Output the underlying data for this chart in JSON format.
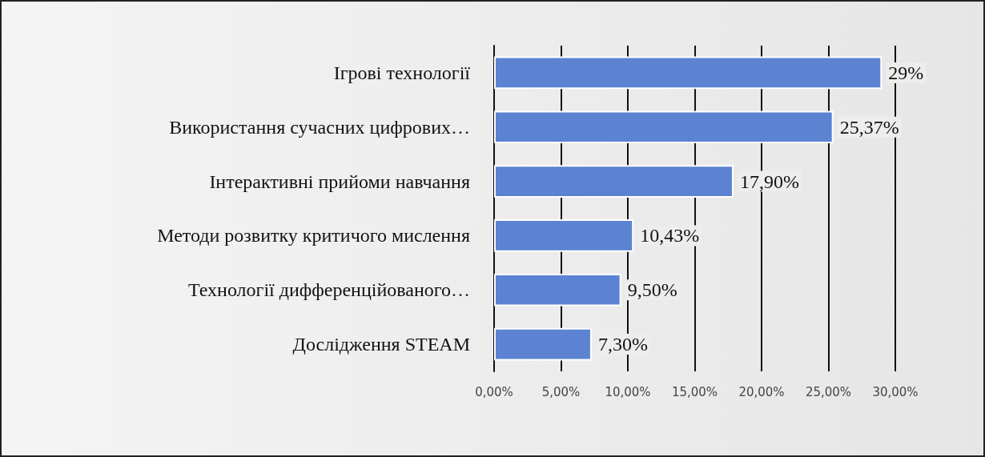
{
  "chart_data": {
    "type": "bar",
    "orientation": "horizontal",
    "categories": [
      "Ігрові технології",
      "Використання сучасних цифрових…",
      "Інтерактивні прийоми навчання",
      "Методи розвитку критичого мислення",
      "Технології дифференційованого…",
      "Дослідження STEAM"
    ],
    "values": [
      29,
      25.37,
      17.9,
      10.43,
      9.5,
      7.3
    ],
    "value_labels": [
      "29%",
      "25,37%",
      "17,90%",
      "10,43%",
      "9,50%",
      "7,30%"
    ],
    "color": "#5b83d2",
    "xlim": [
      0,
      30
    ],
    "xticks": [
      {
        "value": 0,
        "label": "0,00%"
      },
      {
        "value": 5,
        "label": "5,00%"
      },
      {
        "value": 10,
        "label": "10,00%"
      },
      {
        "value": 15,
        "label": "15,00%"
      },
      {
        "value": 20,
        "label": "20,00%"
      },
      {
        "value": 25,
        "label": "25,00%"
      },
      {
        "value": 30,
        "label": "30,00%"
      }
    ],
    "grid": "x"
  }
}
